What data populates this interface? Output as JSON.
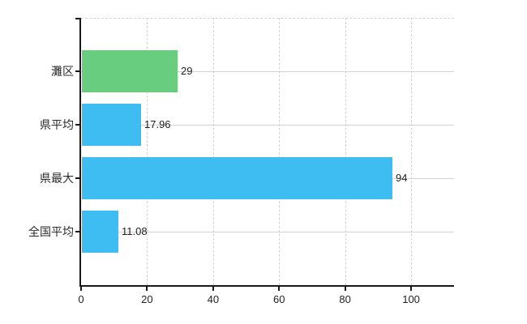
{
  "chart": {
    "background_color": "#ffffff",
    "axis_color": "#1a1a1a",
    "grid_color": "#d2d2d2",
    "text_color": "#2b2b2b",
    "legend": "none"
  },
  "chart_data": {
    "type": "bar",
    "orientation": "horizontal",
    "categories": [
      "灘区",
      "県平均",
      "県最大",
      "全国平均"
    ],
    "values": [
      29,
      17.96,
      94,
      11.08
    ],
    "value_labels": [
      "29",
      "17.96",
      "94",
      "11.08"
    ],
    "bar_colors": [
      "#68cd7e",
      "#3ebdf2",
      "#3ebdf2",
      "#3ebdf2"
    ],
    "x_tick_values": [
      0,
      20,
      40,
      60,
      80,
      100
    ],
    "x_tick_labels": [
      "0",
      "20",
      "40",
      "60",
      "80",
      "100"
    ],
    "xlim": [
      0,
      113
    ],
    "grid": true
  }
}
